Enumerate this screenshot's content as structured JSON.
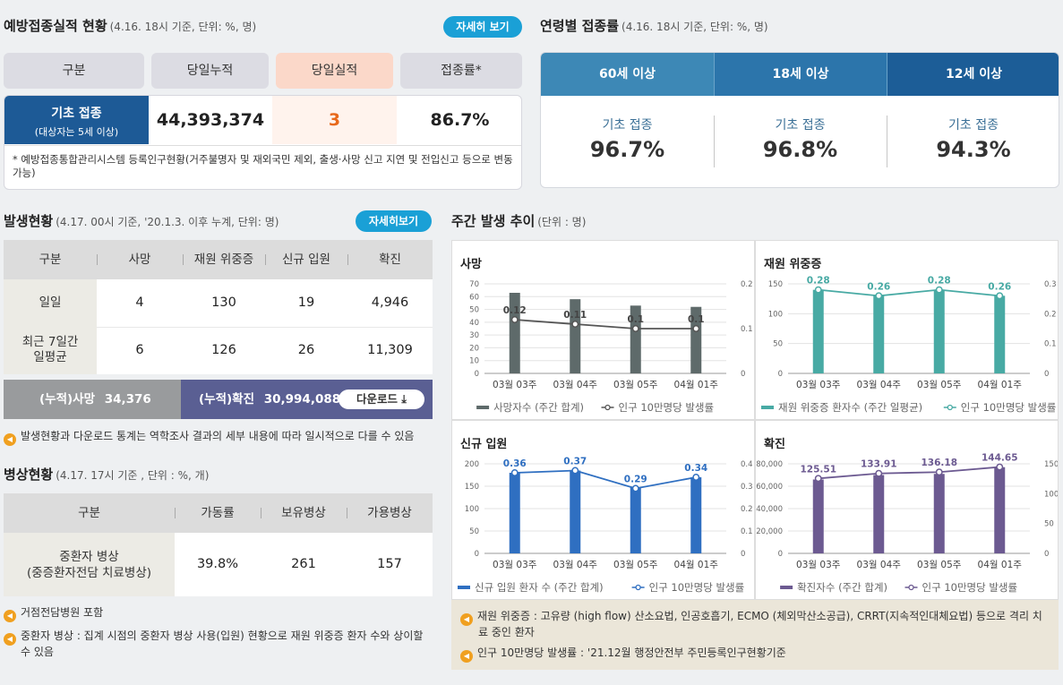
{
  "vaccination": {
    "title": "예방접종실적 현황",
    "subtitle": "(4.16. 18시 기준, 단위: %, 명)",
    "detail_button": "자세히 보기",
    "headers": [
      "구분",
      "당일누적",
      "당일실적",
      "접종률*"
    ],
    "row_label": "기초 접종",
    "row_sublabel": "(대상자는 5세 이상)",
    "cumulative": "44,393,374",
    "today": "3",
    "rate": "86.7%",
    "note": "* 예방접종통합관리시스템 등록인구현황(거주불명자 및 재외국민 제외, 출생·사망 신고 지연 및 전입신고 등으로 변동 가능)"
  },
  "age_rates": {
    "title": "연령별 접종률",
    "subtitle": "(4.16. 18시 기준, 단위: %, 명)",
    "groups": [
      {
        "label": "60세 이상",
        "item": "기초 접종",
        "value": "96.7%",
        "color": "#3d88b6"
      },
      {
        "label": "18세 이상",
        "item": "기초 접종",
        "value": "96.8%",
        "color": "#2c75ab"
      },
      {
        "label": "12세 이상",
        "item": "기초 접종",
        "value": "94.3%",
        "color": "#1c5d97"
      }
    ]
  },
  "occurrence": {
    "title": "발생현황",
    "subtitle": "(4.17. 00시 기준, '20.1.3. 이후 누계, 단위: 명)",
    "detail_button": "자세히보기",
    "headers": [
      "구분",
      "사망",
      "재원 위중증",
      "신규 입원",
      "확진"
    ],
    "rows": [
      {
        "label": "일일",
        "values": [
          "4",
          "130",
          "19",
          "4,946"
        ]
      },
      {
        "label": "최근 7일간\n일평균",
        "values": [
          "6",
          "126",
          "26",
          "11,309"
        ]
      }
    ],
    "cum_death_label": "(누적)사망",
    "cum_death": "34,376",
    "cum_confirmed_label": "(누적)확진",
    "cum_confirmed": "30,994,088",
    "download_button": "다운로드",
    "note": "발생현황과 다운로드 통계는 역학조사 결과의 세부 내용에 따라 일시적으로 다를 수 있음"
  },
  "beds": {
    "title": "병상현황",
    "subtitle": "(4.17. 17시 기준 , 단위 : %, 개)",
    "headers": [
      "구분",
      "가동률",
      "보유병상",
      "가용병상"
    ],
    "row_label": "중환자 병상\n(중증환자전담 치료병상)",
    "values": [
      "39.8%",
      "261",
      "157"
    ],
    "notes": [
      "거점전담병원 포함",
      "중환자 병상 : 집계 시점의 중환자 병상 사용(입원) 현황으로 재원 위중증 환자 수와 상이할 수 있음"
    ]
  },
  "weekly": {
    "title": "주간 발생 추이",
    "subtitle": "(단위 : 명)",
    "notes": [
      "재원 위중증 : 고유량 (high flow) 산소요법, 인공호흡기, ECMO (체외막산소공급), CRRT(지속적인대체요법) 등으로 격리 치료 중인 환자",
      "인구 10만명당 발생률 : '21.12월 행정안전부 주민등록인구현황기준"
    ]
  },
  "chart_data": [
    {
      "type": "bar",
      "title": "사망",
      "categories": [
        "03월 03주",
        "03월 04주",
        "03월 05주",
        "04월 01주"
      ],
      "series": [
        {
          "name": "사망자수 (주간 합계)",
          "type": "bar",
          "axis": "left",
          "values": [
            63,
            58,
            53,
            52
          ],
          "color": "#5e6a6a"
        },
        {
          "name": "인구 10만명당 발생률",
          "type": "line",
          "axis": "right",
          "values": [
            0.12,
            0.11,
            0.1,
            0.1
          ],
          "labels": [
            "0.12",
            "0.11",
            "0.1",
            "0.1"
          ],
          "color": "#555555"
        }
      ],
      "yticks_left": [
        "0",
        "10",
        "20",
        "30",
        "40",
        "50",
        "60",
        "70"
      ],
      "yticks_right": [
        "0",
        "0.1",
        "0.2"
      ],
      "ylim_left": [
        0,
        70
      ],
      "ylim_right": [
        0,
        0.2
      ],
      "legend": "bottom"
    },
    {
      "type": "bar",
      "title": "재원 위중증",
      "categories": [
        "03월 03주",
        "03월 04주",
        "03월 05주",
        "04월 01주"
      ],
      "series": [
        {
          "name": "재원 위중증 환자수 (주간 일평균)",
          "type": "bar",
          "axis": "left",
          "values": [
            140,
            130,
            140,
            130
          ],
          "color": "#48aaa4"
        },
        {
          "name": "인구 10만명당 발생률",
          "type": "line",
          "axis": "right",
          "values": [
            0.28,
            0.26,
            0.28,
            0.26
          ],
          "labels": [
            "0.28",
            "0.26",
            "0.28",
            "0.26"
          ],
          "color": "#48aaa4"
        }
      ],
      "yticks_left": [
        "0",
        "50",
        "100",
        "150"
      ],
      "yticks_right": [
        "0",
        "0.1",
        "0.2",
        "0.3"
      ],
      "ylim_left": [
        0,
        150
      ],
      "ylim_right": [
        0,
        0.3
      ],
      "legend": "bottom"
    },
    {
      "type": "bar",
      "title": "신규 입원",
      "categories": [
        "03월 03주",
        "03월 04주",
        "03월 05주",
        "04월 01주"
      ],
      "series": [
        {
          "name": "신규 입원 환자 수 (주간 합계)",
          "type": "bar",
          "axis": "left",
          "values": [
            180,
            185,
            148,
            170
          ],
          "color": "#2f6fc1"
        },
        {
          "name": "인구 10만명당 발생률",
          "type": "line",
          "axis": "right",
          "values": [
            0.36,
            0.37,
            0.29,
            0.34
          ],
          "labels": [
            "0.36",
            "0.37",
            "0.29",
            "0.34"
          ],
          "color": "#2f6fc1"
        }
      ],
      "yticks_left": [
        "0",
        "50",
        "100",
        "150",
        "200"
      ],
      "yticks_right": [
        "0",
        "0.1",
        "0.2",
        "0.3",
        "0.4"
      ],
      "ylim_left": [
        0,
        200
      ],
      "ylim_right": [
        0,
        0.4
      ],
      "legend": "bottom"
    },
    {
      "type": "bar",
      "title": "확진",
      "categories": [
        "03월 03주",
        "03월 04주",
        "03월 05주",
        "04월 01주"
      ],
      "series": [
        {
          "name": "확진자수 (주간 합계)",
          "type": "bar",
          "axis": "left",
          "values": [
            66000,
            70000,
            71000,
            77000
          ],
          "color": "#6c5a91"
        },
        {
          "name": "인구 10만명당 발생률",
          "type": "line",
          "axis": "right",
          "values": [
            125.51,
            133.91,
            136.18,
            144.65
          ],
          "labels": [
            "125.51",
            "133.91",
            "136.18",
            "144.65"
          ],
          "color": "#6c5a91"
        }
      ],
      "yticks_left": [
        "0",
        "20,000",
        "40,000",
        "60,000",
        "80,000"
      ],
      "yticks_right": [
        "0",
        "50",
        "100",
        "150"
      ],
      "ylim_left": [
        0,
        80000
      ],
      "ylim_right": [
        0,
        150
      ],
      "legend": "bottom"
    }
  ]
}
